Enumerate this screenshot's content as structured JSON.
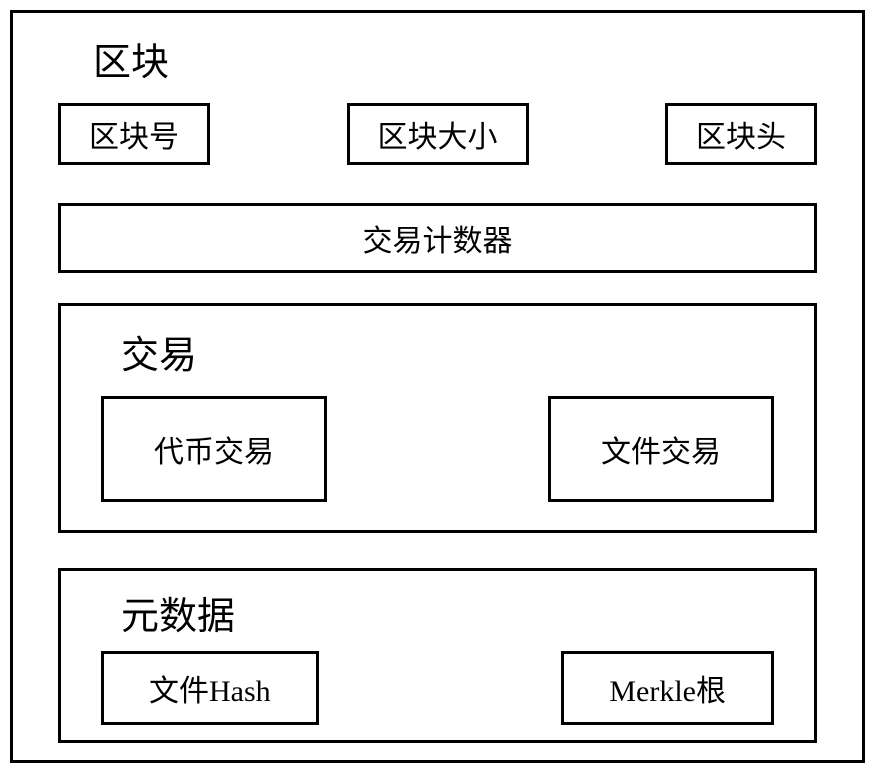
{
  "diagram": {
    "type": "flowchart",
    "background_color": "#ffffff",
    "border_color": "#000000",
    "border_width": 3,
    "text_color": "#000000",
    "font_family": "SimSun",
    "main_title": {
      "text": "区块",
      "fontsize": 38
    },
    "top_items": [
      {
        "label": "区块号",
        "fontsize": 30
      },
      {
        "label": "区块大小",
        "fontsize": 30
      },
      {
        "label": "区块头",
        "fontsize": 30
      }
    ],
    "counter": {
      "label": "交易计数器",
      "fontsize": 30
    },
    "transaction_section": {
      "title": "交易",
      "title_fontsize": 38,
      "items": [
        {
          "label": "代币交易",
          "fontsize": 30
        },
        {
          "label": "文件交易",
          "fontsize": 30
        }
      ]
    },
    "metadata_section": {
      "title": "元数据",
      "title_fontsize": 38,
      "items": [
        {
          "label": "文件Hash",
          "fontsize": 30
        },
        {
          "label": "Merkle根",
          "fontsize": 30
        }
      ]
    }
  }
}
